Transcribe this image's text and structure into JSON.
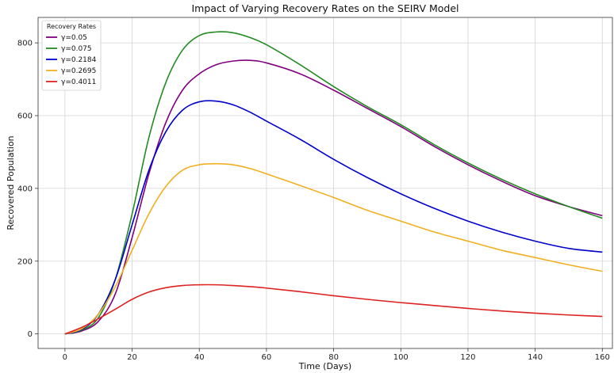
{
  "chart_data": {
    "type": "line",
    "title": "Impact of Varying Recovery Rates on the SEIRV Model",
    "xlabel": "Time (Days)",
    "ylabel": "Recovered Population",
    "xlim": [
      -8,
      163
    ],
    "ylim": [
      -40,
      870
    ],
    "xticks": [
      0,
      20,
      40,
      60,
      80,
      100,
      120,
      140,
      160
    ],
    "yticks": [
      0,
      200,
      400,
      600,
      800
    ],
    "grid": true,
    "legend": {
      "title": "Recovery Rates",
      "placement": "top-left"
    },
    "series": [
      {
        "name": "γ=0.05",
        "color": "#800080",
        "x": [
          0,
          5,
          10,
          15,
          20,
          25,
          30,
          35,
          40,
          45,
          50,
          55,
          60,
          70,
          80,
          90,
          100,
          110,
          120,
          130,
          140,
          150,
          160
        ],
        "y": [
          0,
          8,
          35,
          110,
          265,
          440,
          580,
          670,
          715,
          740,
          750,
          752,
          745,
          715,
          670,
          620,
          570,
          515,
          465,
          420,
          380,
          350,
          325
        ]
      },
      {
        "name": "γ=0.075",
        "color": "#228B22",
        "x": [
          0,
          5,
          10,
          15,
          20,
          25,
          30,
          35,
          40,
          45,
          50,
          55,
          60,
          70,
          80,
          90,
          100,
          110,
          120,
          130,
          140,
          150,
          160
        ],
        "y": [
          0,
          10,
          45,
          150,
          330,
          540,
          690,
          780,
          820,
          830,
          828,
          815,
          795,
          740,
          680,
          625,
          575,
          520,
          470,
          425,
          385,
          350,
          318
        ]
      },
      {
        "name": "γ=0.2184",
        "color": "#0000CC",
        "x": [
          0,
          5,
          10,
          15,
          20,
          25,
          30,
          35,
          40,
          45,
          50,
          55,
          60,
          70,
          80,
          90,
          100,
          110,
          120,
          130,
          140,
          150,
          160
        ],
        "y": [
          0,
          12,
          55,
          150,
          300,
          450,
          555,
          615,
          638,
          640,
          630,
          610,
          585,
          535,
          480,
          430,
          385,
          345,
          310,
          280,
          255,
          235,
          225
        ]
      },
      {
        "name": "γ=0.2695",
        "color": "#F0B020",
        "x": [
          0,
          5,
          10,
          15,
          20,
          25,
          30,
          35,
          40,
          45,
          50,
          55,
          60,
          70,
          80,
          90,
          100,
          110,
          120,
          130,
          140,
          150,
          160
        ],
        "y": [
          0,
          14,
          55,
          130,
          230,
          330,
          405,
          450,
          465,
          468,
          465,
          455,
          440,
          408,
          375,
          340,
          310,
          280,
          255,
          230,
          210,
          190,
          172
        ]
      },
      {
        "name": "γ=0.4011",
        "color": "#DD2222",
        "x": [
          0,
          5,
          10,
          15,
          20,
          25,
          30,
          35,
          40,
          45,
          50,
          55,
          60,
          70,
          80,
          90,
          100,
          110,
          120,
          130,
          140,
          150,
          160
        ],
        "y": [
          0,
          18,
          42,
          68,
          95,
          115,
          127,
          133,
          135,
          135,
          133,
          130,
          126,
          116,
          105,
          95,
          86,
          78,
          70,
          63,
          57,
          52,
          48
        ]
      }
    ]
  }
}
